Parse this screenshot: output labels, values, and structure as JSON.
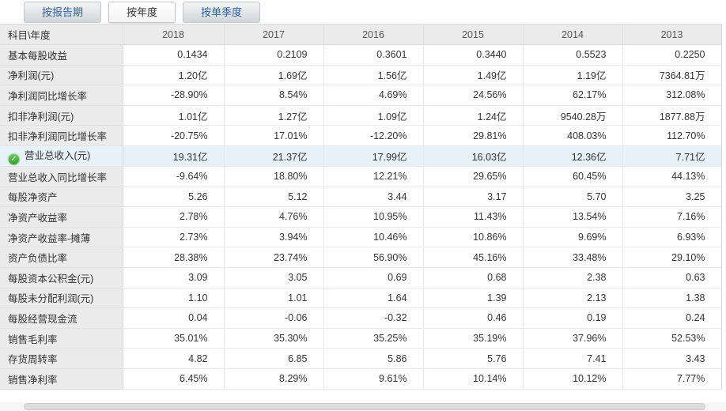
{
  "tabs": [
    {
      "id": "by-report-period",
      "label": "按报告期",
      "active": false
    },
    {
      "id": "by-year",
      "label": "按年度",
      "active": true
    },
    {
      "id": "by-quarter",
      "label": "按单季度",
      "active": false
    }
  ],
  "table": {
    "corner_header": "科目\\年度",
    "years": [
      "2018",
      "2017",
      "2016",
      "2015",
      "2014",
      "2013"
    ],
    "rows": [
      {
        "label": "基本每股收益",
        "values": [
          "0.1434",
          "0.2109",
          "0.3601",
          "0.3440",
          "0.5523",
          "0.2250"
        ]
      },
      {
        "label": "净利润(元)",
        "values": [
          "1.20亿",
          "1.69亿",
          "1.56亿",
          "1.49亿",
          "1.19亿",
          "7364.81万"
        ]
      },
      {
        "label": "净利润同比增长率",
        "values": [
          "-28.90%",
          "8.54%",
          "4.69%",
          "24.56%",
          "62.17%",
          "312.08%"
        ]
      },
      {
        "label": "扣非净利润(元)",
        "values": [
          "1.01亿",
          "1.27亿",
          "1.09亿",
          "1.24亿",
          "9540.28万",
          "1877.88万"
        ]
      },
      {
        "label": "扣非净利润同比增长率",
        "values": [
          "-20.75%",
          "17.01%",
          "-12.20%",
          "29.81%",
          "408.03%",
          "112.70%"
        ]
      },
      {
        "label": "营业总收入(元)",
        "values": [
          "19.31亿",
          "21.37亿",
          "17.99亿",
          "16.03亿",
          "12.36亿",
          "7.71亿"
        ],
        "highlighted": true,
        "icon": "green-check-icon"
      },
      {
        "label": "营业总收入同比增长率",
        "values": [
          "-9.64%",
          "18.80%",
          "12.21%",
          "29.65%",
          "60.45%",
          "44.13%"
        ]
      },
      {
        "label": "每股净资产",
        "values": [
          "5.26",
          "5.12",
          "3.44",
          "3.17",
          "5.70",
          "3.25"
        ]
      },
      {
        "label": "净资产收益率",
        "values": [
          "2.78%",
          "4.76%",
          "10.95%",
          "11.43%",
          "13.54%",
          "7.16%"
        ]
      },
      {
        "label": "净资产收益率-摊薄",
        "values": [
          "2.73%",
          "3.94%",
          "10.46%",
          "10.86%",
          "9.69%",
          "6.93%"
        ]
      },
      {
        "label": "资产负债比率",
        "values": [
          "28.38%",
          "23.74%",
          "56.90%",
          "45.16%",
          "33.48%",
          "29.10%"
        ]
      },
      {
        "label": "每股资本公积金(元)",
        "values": [
          "3.09",
          "3.05",
          "0.69",
          "0.68",
          "2.38",
          "0.63"
        ]
      },
      {
        "label": "每股未分配利润(元)",
        "values": [
          "1.10",
          "1.01",
          "1.64",
          "1.39",
          "2.13",
          "1.38"
        ]
      },
      {
        "label": "每股经营现金流",
        "values": [
          "0.04",
          "-0.06",
          "-0.32",
          "0.46",
          "0.19",
          "0.24"
        ]
      },
      {
        "label": "销售毛利率",
        "values": [
          "35.01%",
          "35.30%",
          "35.25%",
          "35.19%",
          "37.96%",
          "52.53%"
        ]
      },
      {
        "label": "存货周转率",
        "values": [
          "4.82",
          "6.85",
          "5.86",
          "5.76",
          "7.41",
          "3.43"
        ]
      },
      {
        "label": "销售净利率",
        "values": [
          "6.45%",
          "8.29%",
          "9.61%",
          "10.14%",
          "10.12%",
          "7.77%"
        ]
      }
    ]
  },
  "icons": {
    "green_check": "✓"
  },
  "colors": {
    "tab_text_blue": "#31639c",
    "header_bg": "#ebebeb",
    "label_col_bg": "#ebebeb",
    "highlight_row_bg": "#e7f1f8",
    "check_green": "#2da02d",
    "grid_line": "#e9e9e9",
    "text": "#333333"
  }
}
